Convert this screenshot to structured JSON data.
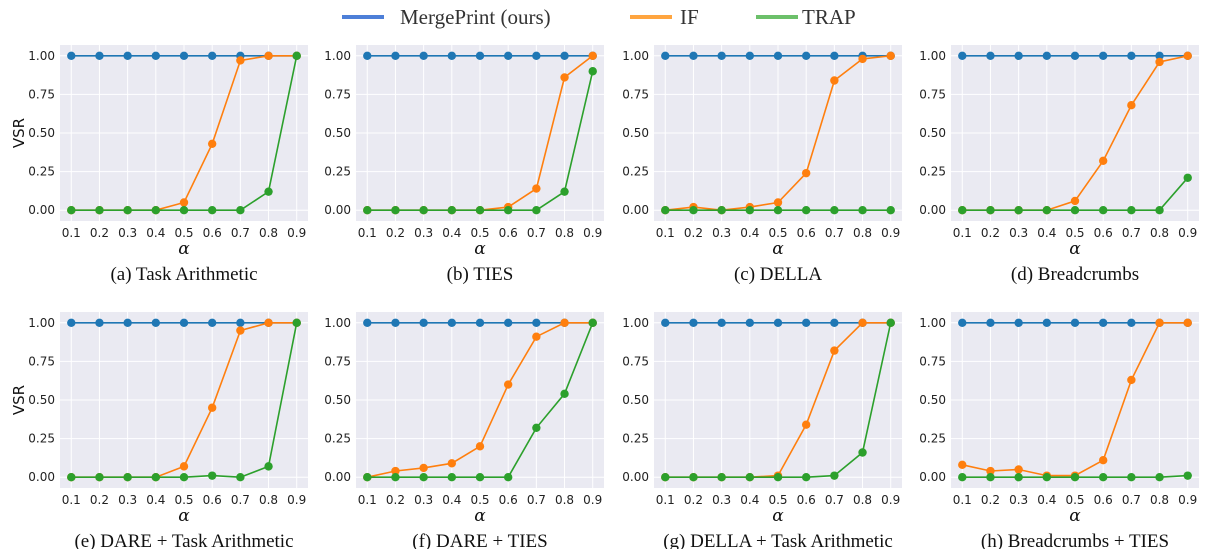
{
  "legend": [
    {
      "label": "MergePrint (ours)",
      "color": "#4d7fd8"
    },
    {
      "label": "IF",
      "color": "#ffa53f"
    },
    {
      "label": "TRAP",
      "color": "#6cc06a"
    }
  ],
  "chart_data": [
    {
      "type": "line",
      "caption": "(a) Task Arithmetic",
      "ylabel": "VSR",
      "xlabel": "α",
      "x": [
        0.1,
        0.2,
        0.3,
        0.4,
        0.5,
        0.6,
        0.7,
        0.8,
        0.9
      ],
      "xticks": [
        "0.1",
        "0.2",
        "0.3",
        "0.4",
        "0.5",
        "0.6",
        "0.7",
        "0.8",
        "0.9"
      ],
      "yticks": [
        "0.00",
        "0.25",
        "0.50",
        "0.75",
        "1.00"
      ],
      "ylim": [
        -0.07,
        1.07
      ],
      "grid": true,
      "series": [
        {
          "name": "MergePrint (ours)",
          "color": "#1f77b4",
          "values": [
            1,
            1,
            1,
            1,
            1,
            1,
            1,
            1,
            1
          ]
        },
        {
          "name": "IF",
          "color": "#ff7f0e",
          "values": [
            0,
            0,
            0,
            0,
            0.05,
            0.43,
            0.97,
            1,
            1
          ]
        },
        {
          "name": "TRAP",
          "color": "#2ca02c",
          "values": [
            0,
            0,
            0,
            0,
            0,
            0,
            0,
            0.12,
            1
          ]
        }
      ]
    },
    {
      "type": "line",
      "caption": "(b) TIES",
      "ylabel": "",
      "xlabel": "α",
      "x": [
        0.1,
        0.2,
        0.3,
        0.4,
        0.5,
        0.6,
        0.7,
        0.8,
        0.9
      ],
      "xticks": [
        "0.1",
        "0.2",
        "0.3",
        "0.4",
        "0.5",
        "0.6",
        "0.7",
        "0.8",
        "0.9"
      ],
      "yticks": [
        "0.00",
        "0.25",
        "0.50",
        "0.75",
        "1.00"
      ],
      "ylim": [
        -0.07,
        1.07
      ],
      "grid": true,
      "series": [
        {
          "name": "MergePrint (ours)",
          "color": "#1f77b4",
          "values": [
            1,
            1,
            1,
            1,
            1,
            1,
            1,
            1,
            1
          ]
        },
        {
          "name": "IF",
          "color": "#ff7f0e",
          "values": [
            0,
            0,
            0,
            0,
            0,
            0.02,
            0.14,
            0.86,
            1
          ]
        },
        {
          "name": "TRAP",
          "color": "#2ca02c",
          "values": [
            0,
            0,
            0,
            0,
            0,
            0,
            0,
            0.12,
            0.9
          ]
        }
      ]
    },
    {
      "type": "line",
      "caption": "(c) DELLA",
      "ylabel": "",
      "xlabel": "α",
      "x": [
        0.1,
        0.2,
        0.3,
        0.4,
        0.5,
        0.6,
        0.7,
        0.8,
        0.9
      ],
      "xticks": [
        "0.1",
        "0.2",
        "0.3",
        "0.4",
        "0.5",
        "0.6",
        "0.7",
        "0.8",
        "0.9"
      ],
      "yticks": [
        "0.00",
        "0.25",
        "0.50",
        "0.75",
        "1.00"
      ],
      "ylim": [
        -0.07,
        1.07
      ],
      "grid": true,
      "series": [
        {
          "name": "MergePrint (ours)",
          "color": "#1f77b4",
          "values": [
            1,
            1,
            1,
            1,
            1,
            1,
            1,
            1,
            1
          ]
        },
        {
          "name": "IF",
          "color": "#ff7f0e",
          "values": [
            0,
            0.02,
            0,
            0.02,
            0.05,
            0.24,
            0.84,
            0.98,
            1
          ]
        },
        {
          "name": "TRAP",
          "color": "#2ca02c",
          "values": [
            0,
            0,
            0,
            0,
            0,
            0,
            0,
            0,
            0
          ]
        }
      ]
    },
    {
      "type": "line",
      "caption": "(d) Breadcrumbs",
      "ylabel": "",
      "xlabel": "α",
      "x": [
        0.1,
        0.2,
        0.3,
        0.4,
        0.5,
        0.6,
        0.7,
        0.8,
        0.9
      ],
      "xticks": [
        "0.1",
        "0.2",
        "0.3",
        "0.4",
        "0.5",
        "0.6",
        "0.7",
        "0.8",
        "0.9"
      ],
      "yticks": [
        "0.00",
        "0.25",
        "0.50",
        "0.75",
        "1.00"
      ],
      "ylim": [
        -0.07,
        1.07
      ],
      "grid": true,
      "series": [
        {
          "name": "MergePrint (ours)",
          "color": "#1f77b4",
          "values": [
            1,
            1,
            1,
            1,
            1,
            1,
            1,
            1,
            1
          ]
        },
        {
          "name": "IF",
          "color": "#ff7f0e",
          "values": [
            0,
            0,
            0,
            0,
            0.06,
            0.32,
            0.68,
            0.96,
            1
          ]
        },
        {
          "name": "TRAP",
          "color": "#2ca02c",
          "values": [
            0,
            0,
            0,
            0,
            0,
            0,
            0,
            0,
            0.21
          ]
        }
      ]
    },
    {
      "type": "line",
      "caption": "(e) DARE + Task Arithmetic",
      "ylabel": "VSR",
      "xlabel": "α",
      "x": [
        0.1,
        0.2,
        0.3,
        0.4,
        0.5,
        0.6,
        0.7,
        0.8,
        0.9
      ],
      "xticks": [
        "0.1",
        "0.2",
        "0.3",
        "0.4",
        "0.5",
        "0.6",
        "0.7",
        "0.8",
        "0.9"
      ],
      "yticks": [
        "0.00",
        "0.25",
        "0.50",
        "0.75",
        "1.00"
      ],
      "ylim": [
        -0.07,
        1.07
      ],
      "grid": true,
      "series": [
        {
          "name": "MergePrint (ours)",
          "color": "#1f77b4",
          "values": [
            1,
            1,
            1,
            1,
            1,
            1,
            1,
            1,
            1
          ]
        },
        {
          "name": "IF",
          "color": "#ff7f0e",
          "values": [
            0,
            0,
            0,
            0,
            0.07,
            0.45,
            0.95,
            1,
            1
          ]
        },
        {
          "name": "TRAP",
          "color": "#2ca02c",
          "values": [
            0,
            0,
            0,
            0,
            0,
            0.01,
            0,
            0.07,
            1
          ]
        }
      ]
    },
    {
      "type": "line",
      "caption": "(f) DARE + TIES",
      "ylabel": "",
      "xlabel": "α",
      "x": [
        0.1,
        0.2,
        0.3,
        0.4,
        0.5,
        0.6,
        0.7,
        0.8,
        0.9
      ],
      "xticks": [
        "0.1",
        "0.2",
        "0.3",
        "0.4",
        "0.5",
        "0.6",
        "0.7",
        "0.8",
        "0.9"
      ],
      "yticks": [
        "0.00",
        "0.25",
        "0.50",
        "0.75",
        "1.00"
      ],
      "ylim": [
        -0.07,
        1.07
      ],
      "grid": true,
      "series": [
        {
          "name": "MergePrint (ours)",
          "color": "#1f77b4",
          "values": [
            1,
            1,
            1,
            1,
            1,
            1,
            1,
            1,
            1
          ]
        },
        {
          "name": "IF",
          "color": "#ff7f0e",
          "values": [
            0,
            0.04,
            0.06,
            0.09,
            0.2,
            0.6,
            0.91,
            1,
            1
          ]
        },
        {
          "name": "TRAP",
          "color": "#2ca02c",
          "values": [
            0,
            0,
            0,
            0,
            0,
            0,
            0.32,
            0.54,
            1
          ]
        }
      ]
    },
    {
      "type": "line",
      "caption": "(g) DELLA + Task Arithmetic",
      "ylabel": "",
      "xlabel": "α",
      "x": [
        0.1,
        0.2,
        0.3,
        0.4,
        0.5,
        0.6,
        0.7,
        0.8,
        0.9
      ],
      "xticks": [
        "0.1",
        "0.2",
        "0.3",
        "0.4",
        "0.5",
        "0.6",
        "0.7",
        "0.8",
        "0.9"
      ],
      "yticks": [
        "0.00",
        "0.25",
        "0.50",
        "0.75",
        "1.00"
      ],
      "ylim": [
        -0.07,
        1.07
      ],
      "grid": true,
      "series": [
        {
          "name": "MergePrint (ours)",
          "color": "#1f77b4",
          "values": [
            1,
            1,
            1,
            1,
            1,
            1,
            1,
            1,
            1
          ]
        },
        {
          "name": "IF",
          "color": "#ff7f0e",
          "values": [
            0,
            0,
            0,
            0,
            0.01,
            0.34,
            0.82,
            1,
            1
          ]
        },
        {
          "name": "TRAP",
          "color": "#2ca02c",
          "values": [
            0,
            0,
            0,
            0,
            0,
            0,
            0.01,
            0.16,
            1
          ]
        }
      ]
    },
    {
      "type": "line",
      "caption": "(h) Breadcrumbs + TIES",
      "ylabel": "",
      "xlabel": "α",
      "x": [
        0.1,
        0.2,
        0.3,
        0.4,
        0.5,
        0.6,
        0.7,
        0.8,
        0.9
      ],
      "xticks": [
        "0.1",
        "0.2",
        "0.3",
        "0.4",
        "0.5",
        "0.6",
        "0.7",
        "0.8",
        "0.9"
      ],
      "yticks": [
        "0.00",
        "0.25",
        "0.50",
        "0.75",
        "1.00"
      ],
      "ylim": [
        -0.07,
        1.07
      ],
      "grid": true,
      "series": [
        {
          "name": "MergePrint (ours)",
          "color": "#1f77b4",
          "values": [
            1,
            1,
            1,
            1,
            1,
            1,
            1,
            1,
            1
          ]
        },
        {
          "name": "IF",
          "color": "#ff7f0e",
          "values": [
            0.08,
            0.04,
            0.05,
            0.01,
            0.01,
            0.11,
            0.63,
            1,
            1
          ]
        },
        {
          "name": "TRAP",
          "color": "#2ca02c",
          "values": [
            0,
            0,
            0,
            0,
            0,
            0,
            0,
            0,
            0.01
          ]
        }
      ]
    }
  ]
}
